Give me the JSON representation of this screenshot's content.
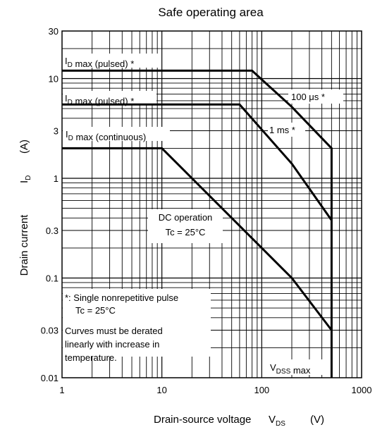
{
  "chart_data": {
    "type": "line",
    "title": "Safe operating area",
    "xlabel": {
      "main": "Drain-source voltage",
      "symbol": "V",
      "sub": "DS",
      "unit": "(V)"
    },
    "ylabel": {
      "main": "Drain current",
      "symbol": "I",
      "sub": "D",
      "unit": "(A)"
    },
    "x_scale": "log",
    "y_scale": "log",
    "xlim": [
      1,
      1000
    ],
    "ylim": [
      0.01,
      30
    ],
    "grid": true,
    "x_ticks": [
      {
        "value": 1,
        "label": "1"
      },
      {
        "value": 10,
        "label": "10"
      },
      {
        "value": 100,
        "label": "100"
      },
      {
        "value": 1000,
        "label": "1000"
      }
    ],
    "y_ticks": [
      {
        "value": 30,
        "label": "30"
      },
      {
        "value": 10,
        "label": "10"
      },
      {
        "value": 3,
        "label": "3"
      },
      {
        "value": 1,
        "label": "1"
      },
      {
        "value": 0.3,
        "label": "0.3"
      },
      {
        "value": 0.1,
        "label": "0.1"
      },
      {
        "value": 0.03,
        "label": "0.03"
      },
      {
        "value": 0.01,
        "label": "0.01"
      }
    ],
    "series": [
      {
        "name": "100 μs *",
        "x": [
          1,
          80,
          200,
          500,
          500
        ],
        "y": [
          12,
          12,
          5.2,
          2,
          0.01
        ]
      },
      {
        "name": "1 ms *",
        "x": [
          1,
          60,
          200,
          500
        ],
        "y": [
          5.5,
          5.5,
          1.4,
          0.38
        ]
      },
      {
        "name": "DC operation Tc = 25°C",
        "x": [
          1,
          10,
          200,
          500
        ],
        "y": [
          2,
          2,
          0.1,
          0.03
        ]
      }
    ],
    "annotations": [
      {
        "id": "id-max-pulsed-1",
        "parts": [
          {
            "t": "I"
          },
          {
            "t": "D",
            "sub": true
          },
          {
            "t": " max (pulsed) *"
          }
        ]
      },
      {
        "id": "id-max-pulsed-2",
        "parts": [
          {
            "t": "I"
          },
          {
            "t": "D",
            "sub": true
          },
          {
            "t": " max (pulsed) *"
          }
        ]
      },
      {
        "id": "id-max-continuous",
        "parts": [
          {
            "t": "I"
          },
          {
            "t": "D",
            "sub": true
          },
          {
            "t": " max (continuous)"
          }
        ]
      },
      {
        "id": "label-100us",
        "parts": [
          {
            "t": "100 μs *"
          }
        ]
      },
      {
        "id": "label-1ms",
        "parts": [
          {
            "t": "1 ms *"
          }
        ]
      },
      {
        "id": "dc-operation-line1",
        "parts": [
          {
            "t": "DC operation"
          }
        ]
      },
      {
        "id": "dc-operation-line2",
        "parts": [
          {
            "t": "Tc = 25°C"
          }
        ]
      },
      {
        "id": "vdss-max",
        "parts": [
          {
            "t": "V"
          },
          {
            "t": "DSS",
            "sub": true
          },
          {
            "t": " max"
          }
        ]
      }
    ],
    "note_lines": [
      "*: Single nonrepetitive pulse",
      "Tc = 25°C",
      "Curves must be derated",
      "linearly with increase in",
      "temperature."
    ]
  }
}
